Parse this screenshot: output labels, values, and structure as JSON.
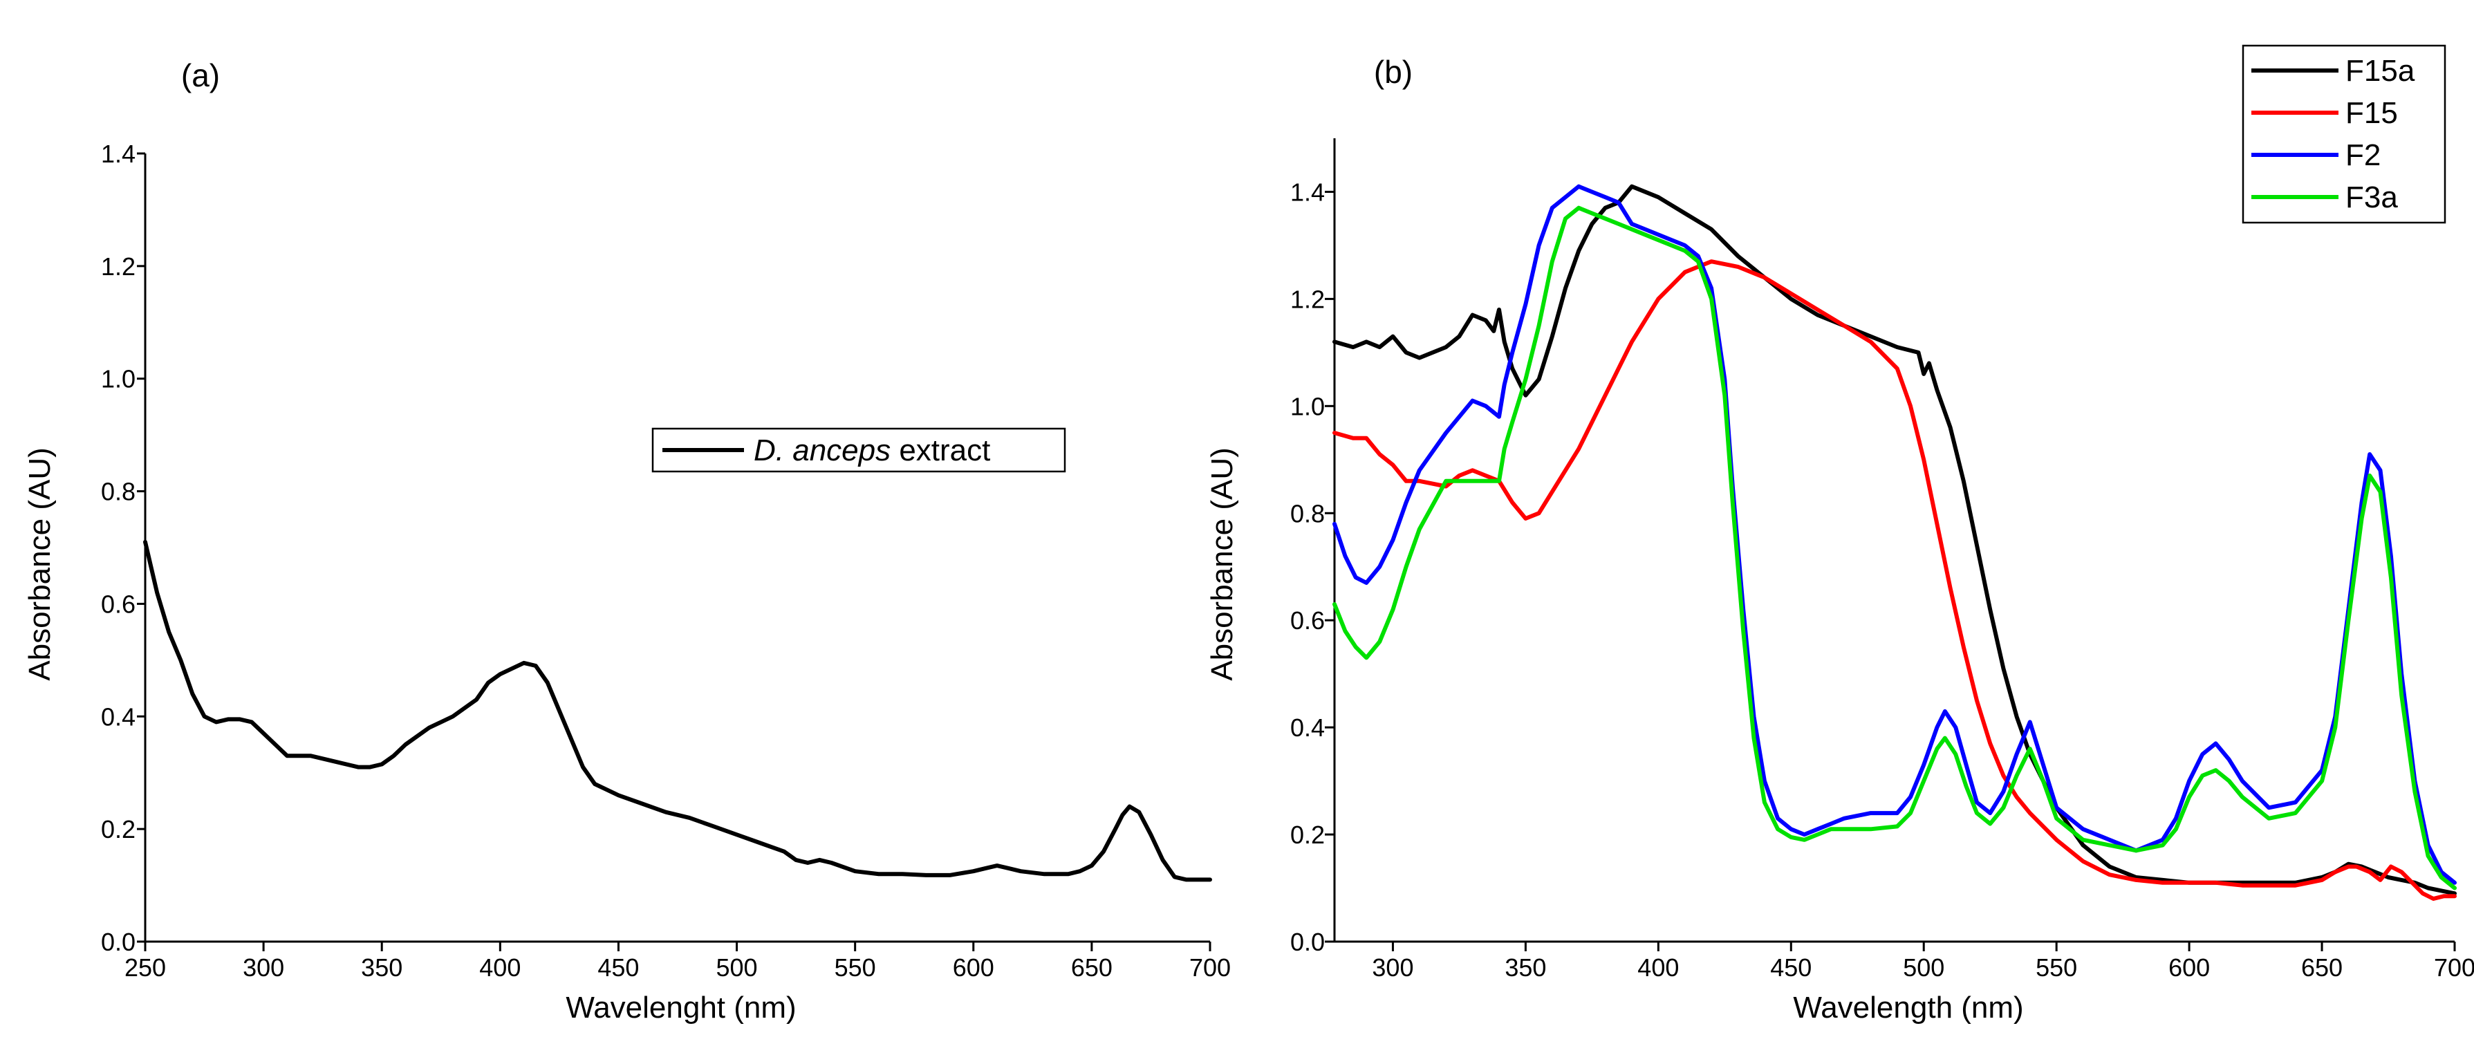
{
  "chart_data": [
    {
      "panel_label": "(a)",
      "type": "line",
      "xlabel": "Wavelenght (nm)",
      "ylabel": "Absorbance (AU)",
      "xlim": [
        250,
        700
      ],
      "ylim": [
        0.0,
        1.4
      ],
      "xticks": [
        250,
        300,
        350,
        400,
        450,
        500,
        550,
        600,
        650,
        700
      ],
      "xtick_labels": [
        "250",
        "300",
        "350",
        "400",
        "450",
        "500",
        "550",
        "600",
        "650",
        "700"
      ],
      "yticks": [
        0.0,
        0.2,
        0.4,
        0.6,
        0.8,
        1.0,
        1.2,
        1.4
      ],
      "ytick_labels": [
        "0.0",
        "0.2",
        "0.4",
        "0.6",
        "0.8",
        "1.0",
        "1.2",
        "1.4"
      ],
      "legend_position": "center-right",
      "legend": [
        {
          "italic": "D. anceps",
          "text": " extract",
          "color": "#000000"
        }
      ],
      "series": [
        {
          "name": "D. anceps extract",
          "color": "#000000",
          "x": [
            250,
            255,
            260,
            265,
            270,
            275,
            280,
            285,
            290,
            295,
            300,
            305,
            310,
            320,
            330,
            340,
            345,
            350,
            355,
            360,
            370,
            380,
            390,
            395,
            400,
            405,
            410,
            415,
            420,
            425,
            430,
            435,
            440,
            450,
            460,
            470,
            480,
            490,
            500,
            510,
            520,
            525,
            530,
            535,
            540,
            550,
            560,
            570,
            580,
            590,
            600,
            605,
            610,
            615,
            620,
            630,
            640,
            645,
            650,
            655,
            660,
            663,
            666,
            670,
            675,
            680,
            685,
            690,
            700
          ],
          "y": [
            0.71,
            0.62,
            0.55,
            0.5,
            0.44,
            0.4,
            0.39,
            0.395,
            0.395,
            0.39,
            0.37,
            0.35,
            0.33,
            0.33,
            0.32,
            0.31,
            0.31,
            0.315,
            0.33,
            0.35,
            0.38,
            0.4,
            0.43,
            0.46,
            0.475,
            0.485,
            0.495,
            0.49,
            0.46,
            0.41,
            0.36,
            0.31,
            0.28,
            0.26,
            0.245,
            0.23,
            0.22,
            0.205,
            0.19,
            0.175,
            0.16,
            0.145,
            0.14,
            0.145,
            0.14,
            0.125,
            0.12,
            0.12,
            0.118,
            0.118,
            0.125,
            0.13,
            0.135,
            0.13,
            0.125,
            0.12,
            0.12,
            0.125,
            0.135,
            0.16,
            0.2,
            0.225,
            0.24,
            0.23,
            0.19,
            0.145,
            0.115,
            0.11,
            0.11
          ]
        }
      ]
    },
    {
      "panel_label": "(b)",
      "type": "line",
      "xlabel": "Wavelength (nm)",
      "ylabel": "Absorbance (AU)",
      "xlim": [
        278,
        700
      ],
      "ylim": [
        0.0,
        1.5
      ],
      "xticks": [
        300,
        350,
        400,
        450,
        500,
        550,
        600,
        650,
        700
      ],
      "xtick_labels": [
        "300",
        "350",
        "400",
        "450",
        "500",
        "550",
        "600",
        "650",
        "700"
      ],
      "yticks": [
        0.0,
        0.2,
        0.4,
        0.6,
        0.8,
        1.0,
        1.2,
        1.4
      ],
      "ytick_labels": [
        "0.0",
        "0.2",
        "0.4",
        "0.6",
        "0.8",
        "1.0",
        "1.2",
        "1.4"
      ],
      "legend_position": "top-right",
      "series": [
        {
          "name": "F15a",
          "color": "#000000",
          "x": [
            278,
            285,
            290,
            295,
            300,
            305,
            310,
            320,
            325,
            330,
            335,
            338,
            340,
            342,
            345,
            350,
            355,
            360,
            365,
            370,
            375,
            380,
            385,
            390,
            400,
            410,
            420,
            430,
            440,
            450,
            460,
            470,
            480,
            490,
            498,
            500,
            502,
            505,
            510,
            515,
            520,
            525,
            530,
            535,
            540,
            550,
            560,
            570,
            580,
            590,
            600,
            610,
            620,
            630,
            640,
            650,
            655,
            660,
            665,
            670,
            675,
            680,
            685,
            690,
            695,
            700
          ],
          "y": [
            1.12,
            1.11,
            1.12,
            1.11,
            1.13,
            1.1,
            1.09,
            1.11,
            1.13,
            1.17,
            1.16,
            1.14,
            1.18,
            1.12,
            1.07,
            1.02,
            1.05,
            1.13,
            1.22,
            1.29,
            1.34,
            1.37,
            1.38,
            1.41,
            1.39,
            1.36,
            1.33,
            1.28,
            1.24,
            1.2,
            1.17,
            1.15,
            1.13,
            1.11,
            1.1,
            1.06,
            1.08,
            1.03,
            0.96,
            0.86,
            0.74,
            0.62,
            0.51,
            0.42,
            0.35,
            0.25,
            0.18,
            0.14,
            0.12,
            0.115,
            0.11,
            0.11,
            0.11,
            0.11,
            0.11,
            0.12,
            0.13,
            0.145,
            0.14,
            0.13,
            0.12,
            0.115,
            0.11,
            0.1,
            0.095,
            0.09
          ]
        },
        {
          "name": "F15",
          "color": "#ff0000",
          "x": [
            278,
            285,
            290,
            295,
            300,
            305,
            310,
            320,
            325,
            330,
            335,
            340,
            345,
            350,
            355,
            360,
            365,
            370,
            375,
            380,
            385,
            390,
            400,
            410,
            415,
            420,
            430,
            440,
            450,
            460,
            470,
            480,
            490,
            495,
            500,
            505,
            510,
            515,
            520,
            525,
            530,
            535,
            540,
            550,
            560,
            570,
            580,
            590,
            600,
            610,
            620,
            630,
            640,
            650,
            655,
            660,
            663,
            668,
            672,
            676,
            680,
            684,
            688,
            692,
            696,
            700
          ],
          "y": [
            0.95,
            0.94,
            0.94,
            0.91,
            0.89,
            0.86,
            0.86,
            0.85,
            0.87,
            0.88,
            0.87,
            0.86,
            0.82,
            0.79,
            0.8,
            0.84,
            0.88,
            0.92,
            0.97,
            1.02,
            1.07,
            1.12,
            1.2,
            1.25,
            1.26,
            1.27,
            1.26,
            1.24,
            1.21,
            1.18,
            1.15,
            1.12,
            1.07,
            1.0,
            0.9,
            0.78,
            0.66,
            0.55,
            0.45,
            0.37,
            0.31,
            0.27,
            0.24,
            0.19,
            0.15,
            0.125,
            0.115,
            0.11,
            0.11,
            0.11,
            0.105,
            0.105,
            0.105,
            0.115,
            0.13,
            0.14,
            0.14,
            0.13,
            0.115,
            0.14,
            0.13,
            0.11,
            0.09,
            0.08,
            0.085,
            0.085
          ]
        },
        {
          "name": "F2",
          "color": "#0000ff",
          "x": [
            278,
            282,
            286,
            290,
            295,
            300,
            305,
            310,
            320,
            330,
            335,
            340,
            342,
            345,
            350,
            355,
            360,
            365,
            370,
            375,
            380,
            385,
            390,
            400,
            410,
            415,
            420,
            425,
            428,
            432,
            436,
            440,
            445,
            450,
            455,
            460,
            465,
            470,
            480,
            490,
            495,
            500,
            505,
            508,
            512,
            516,
            520,
            525,
            530,
            535,
            540,
            545,
            550,
            560,
            570,
            580,
            590,
            595,
            600,
            605,
            610,
            615,
            620,
            630,
            640,
            650,
            655,
            660,
            665,
            668,
            672,
            676,
            680,
            685,
            690,
            695,
            700
          ],
          "y": [
            0.78,
            0.72,
            0.68,
            0.67,
            0.7,
            0.75,
            0.82,
            0.88,
            0.95,
            1.01,
            1.0,
            0.98,
            1.04,
            1.1,
            1.19,
            1.3,
            1.37,
            1.39,
            1.41,
            1.4,
            1.39,
            1.38,
            1.34,
            1.32,
            1.3,
            1.28,
            1.22,
            1.05,
            0.85,
            0.62,
            0.42,
            0.3,
            0.23,
            0.21,
            0.2,
            0.21,
            0.22,
            0.23,
            0.24,
            0.24,
            0.27,
            0.33,
            0.4,
            0.43,
            0.4,
            0.33,
            0.26,
            0.24,
            0.28,
            0.35,
            0.41,
            0.33,
            0.25,
            0.21,
            0.19,
            0.17,
            0.19,
            0.23,
            0.3,
            0.35,
            0.37,
            0.34,
            0.3,
            0.25,
            0.26,
            0.32,
            0.42,
            0.62,
            0.82,
            0.91,
            0.88,
            0.72,
            0.5,
            0.3,
            0.18,
            0.13,
            0.11
          ]
        },
        {
          "name": "F3a",
          "color": "#00e000",
          "x": [
            278,
            282,
            286,
            290,
            295,
            300,
            305,
            310,
            320,
            330,
            335,
            340,
            342,
            345,
            350,
            355,
            360,
            365,
            370,
            375,
            380,
            385,
            390,
            400,
            410,
            415,
            420,
            425,
            428,
            432,
            436,
            440,
            445,
            450,
            455,
            460,
            465,
            470,
            480,
            490,
            495,
            500,
            505,
            508,
            512,
            516,
            520,
            525,
            530,
            535,
            540,
            545,
            550,
            560,
            570,
            580,
            590,
            595,
            600,
            605,
            610,
            615,
            620,
            630,
            640,
            650,
            655,
            660,
            665,
            668,
            672,
            676,
            680,
            685,
            690,
            695,
            700
          ],
          "y": [
            0.63,
            0.58,
            0.55,
            0.53,
            0.56,
            0.62,
            0.7,
            0.77,
            0.86,
            0.86,
            0.86,
            0.86,
            0.92,
            0.97,
            1.05,
            1.15,
            1.27,
            1.35,
            1.37,
            1.36,
            1.35,
            1.34,
            1.33,
            1.31,
            1.29,
            1.27,
            1.2,
            1.02,
            0.82,
            0.58,
            0.38,
            0.26,
            0.21,
            0.195,
            0.19,
            0.2,
            0.21,
            0.21,
            0.21,
            0.215,
            0.24,
            0.3,
            0.36,
            0.38,
            0.35,
            0.29,
            0.24,
            0.22,
            0.25,
            0.31,
            0.36,
            0.3,
            0.23,
            0.19,
            0.18,
            0.17,
            0.18,
            0.21,
            0.27,
            0.31,
            0.32,
            0.3,
            0.27,
            0.23,
            0.24,
            0.3,
            0.4,
            0.6,
            0.79,
            0.87,
            0.84,
            0.68,
            0.46,
            0.28,
            0.16,
            0.12,
            0.1
          ]
        }
      ]
    }
  ]
}
